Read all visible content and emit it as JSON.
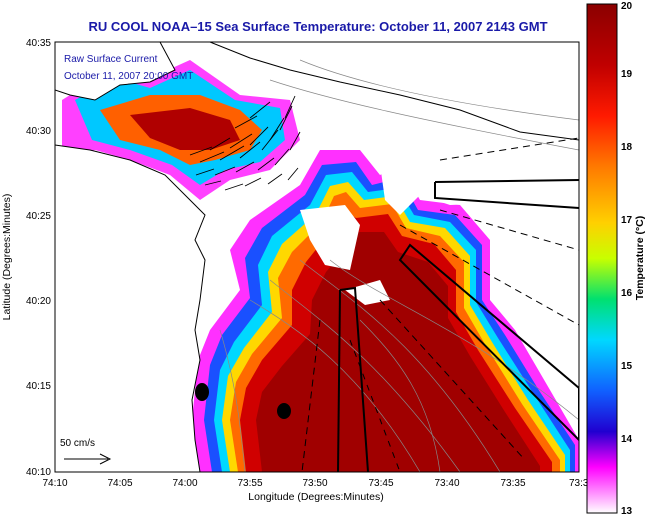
{
  "title": "RU COOL  NOAA–15  Sea Surface Temperature:  October 11, 2007 2143 GMT",
  "overlay": {
    "line1": "Raw Surface Current",
    "line2": "October 11, 2007 20:00 GMT"
  },
  "axes": {
    "xlabel": "Longitude (Degrees:Minutes)",
    "ylabel": "Latitude (Degrees:Minutes)",
    "xticks": [
      "74:10",
      "74:05",
      "74:00",
      "73:55",
      "73:50",
      "73:45",
      "73:40",
      "73:35",
      "73:3"
    ],
    "yticks": [
      "40:35",
      "40:30",
      "40:25",
      "40:20",
      "40:15",
      "40:10"
    ]
  },
  "colorbar": {
    "label": "Temperature (°C)",
    "ticks": [
      "20",
      "19",
      "18",
      "17",
      "16",
      "15",
      "14",
      "13"
    ],
    "colors": [
      "#900000",
      "#d00000",
      "#ff2000",
      "#ff8000",
      "#ffff00",
      "#00e060",
      "#00e0ff",
      "#0000ff",
      "#ff00ff",
      "#ffffff"
    ]
  },
  "scale_arrow": {
    "label": "50 cm/s"
  }
}
